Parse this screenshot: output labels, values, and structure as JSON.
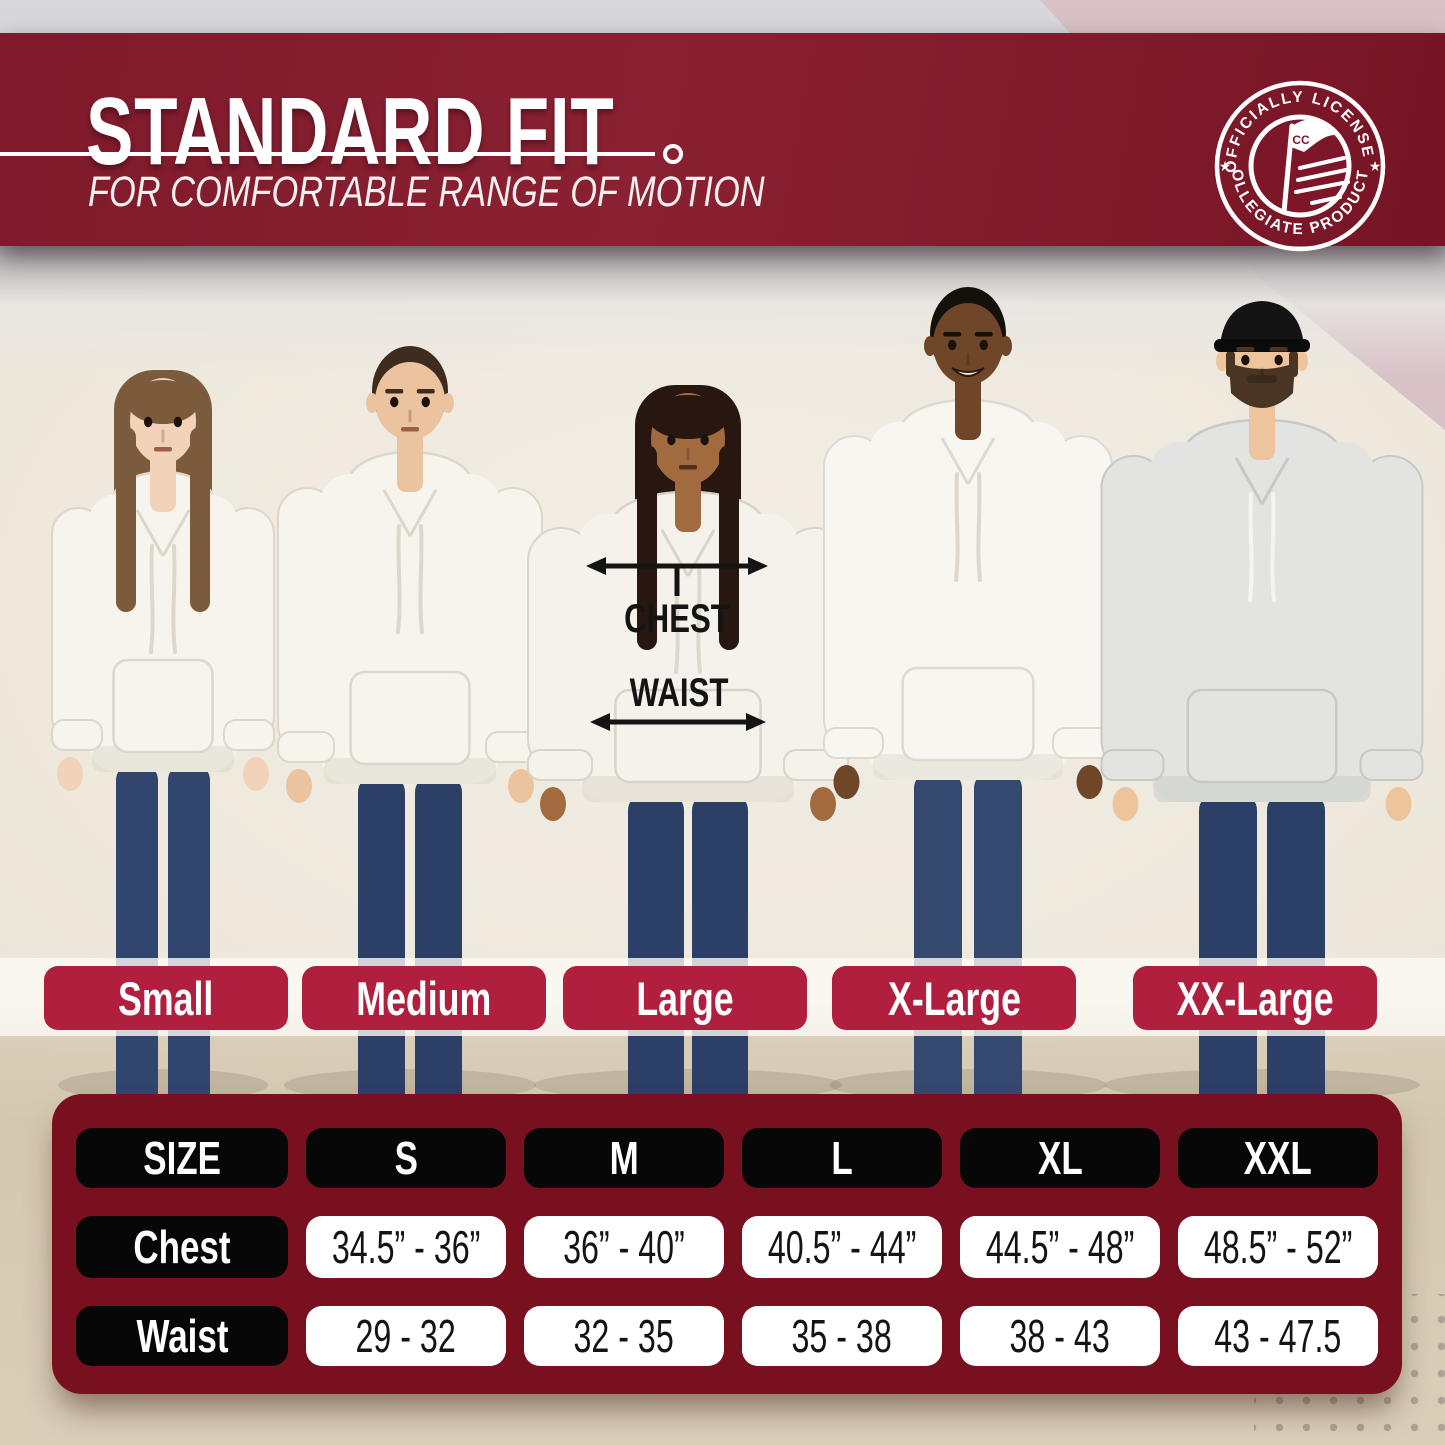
{
  "header": {
    "title": "STANDARD FIT",
    "subtitle": "FOR COMFORTABLE RANGE OF MOTION",
    "badge": {
      "arc_top": "OFFICIALLY LICENSED",
      "arc_bottom": "COLLEGIATE PRODUCTS",
      "flag_initials": "CC",
      "star": "★"
    }
  },
  "annotations": {
    "chest": "CHEST",
    "waist": "WAIST"
  },
  "sizes": [
    "Small",
    "Medium",
    "Large",
    "X-Large",
    "XX-Large"
  ],
  "people": [
    {
      "size": "Small",
      "figure": "woman with long light-brown hair and bangs, white hoodie, blue jeans",
      "skin": "#F2D3B9",
      "hair_color": "#7B5B3B",
      "hoodie": "#F7F4EE",
      "hoodie_shade": "#DCD7CA",
      "jeans": "#31466E"
    },
    {
      "size": "Medium",
      "figure": "man with short dark hair and stubble, white hoodie, blue jeans",
      "skin": "#EBC49F",
      "hair_color": "#3E2D1E",
      "hoodie": "#F7F4EE",
      "hoodie_shade": "#DCD7CA",
      "jeans": "#2C3F66"
    },
    {
      "size": "Large",
      "figure": "woman with long dark hair, white hoodie with chest/waist arrows, blue jeans",
      "skin": "#A26A3F",
      "hair_color": "#271710",
      "hoodie": "#F5F2EB",
      "hoodie_shade": "#D9D4C7",
      "jeans": "#2C3F66"
    },
    {
      "size": "X-Large",
      "figure": "smiling man with short black hair, white hoodie, blue jeans",
      "skin": "#6F4728",
      "hair_color": "#14100A",
      "hoodie": "#F8F6F1",
      "hoodie_shade": "#DEDAD0",
      "jeans": "#35496E"
    },
    {
      "size": "XX-Large",
      "figure": "bearded man with black cap, light gray hoodie, blue jeans",
      "skin": "#EEC49C",
      "hair_color": "#4A3524",
      "hoodie": "#E3E4E2",
      "hoodie_shade": "#C7C9C6",
      "jeans": "#2C3F66",
      "cap": "#141415"
    }
  ],
  "chart_data": {
    "type": "table",
    "title": "STANDARD FIT",
    "columns": [
      "SIZE",
      "S",
      "M",
      "L",
      "XL",
      "XXL"
    ],
    "rows": [
      {
        "label": "Chest",
        "values": [
          "34.5” - 36”",
          "36” - 40”",
          "40.5” - 44”",
          "44.5” - 48”",
          "48.5” - 52”"
        ]
      },
      {
        "label": "Waist",
        "values": [
          "29 - 32",
          "32 - 35",
          "35 - 38",
          "38 - 43",
          "43 - 47.5"
        ]
      }
    ]
  },
  "colors": {
    "banner_maroon": "#7E1A2B",
    "table_maroon": "#79101F",
    "pill_crimson": "#B01F3E",
    "cell_black": "#070707",
    "wall_cream": "#ECE6DA",
    "floor_beige": "#D5C8B1",
    "pink_band": "#D8C2C8",
    "gray_strip": "#D8D7DB",
    "arrow_black": "#141414"
  }
}
